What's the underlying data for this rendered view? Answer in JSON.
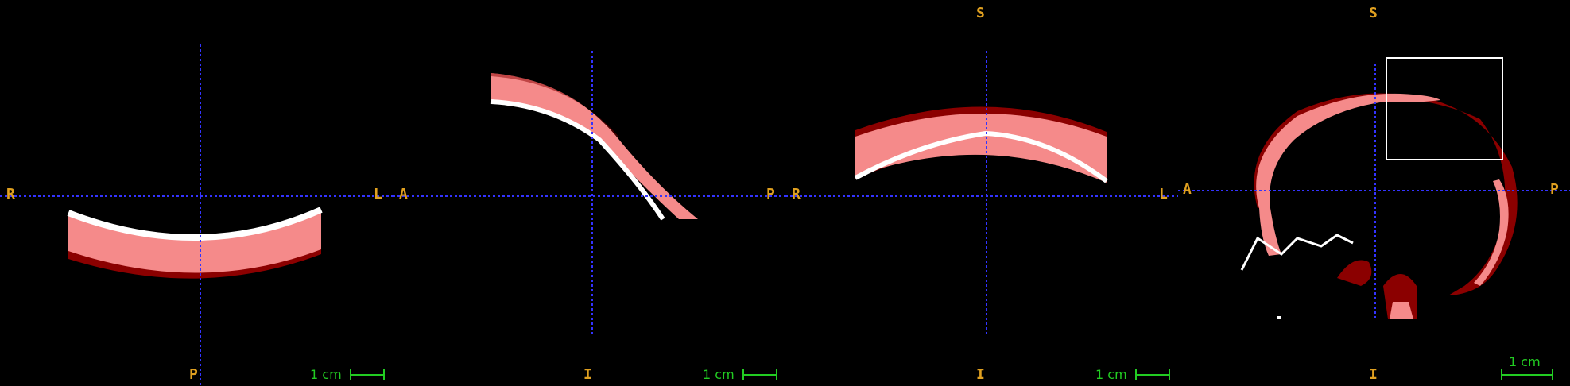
{
  "colors": {
    "background": "#000000",
    "crosshair": "#3333ff",
    "orientation_label": "#e0a020",
    "scale_bar": "#22cc22",
    "segment_light": "#f58a8a",
    "segment_dark": "#8b0000",
    "segment_edge": "#ffffff",
    "roi_box": "#ffffff"
  },
  "views": [
    {
      "id": "axial",
      "labels": {
        "left": "R",
        "right": "L",
        "bottom": "P"
      },
      "scale_bar": "1 cm"
    },
    {
      "id": "sagittal",
      "labels": {
        "left": "A",
        "right": "P",
        "bottom": "I"
      },
      "scale_bar": "1 cm"
    },
    {
      "id": "coronal",
      "labels": {
        "left": "R",
        "right": "L",
        "top": "S",
        "bottom": "I"
      },
      "scale_bar": "1 cm"
    },
    {
      "id": "sagittal-overview",
      "labels": {
        "left": "A",
        "right": "P",
        "top": "S",
        "bottom": "I"
      },
      "scale_bar": "1 cm",
      "roi_box_icon": "selection-rectangle"
    }
  ]
}
